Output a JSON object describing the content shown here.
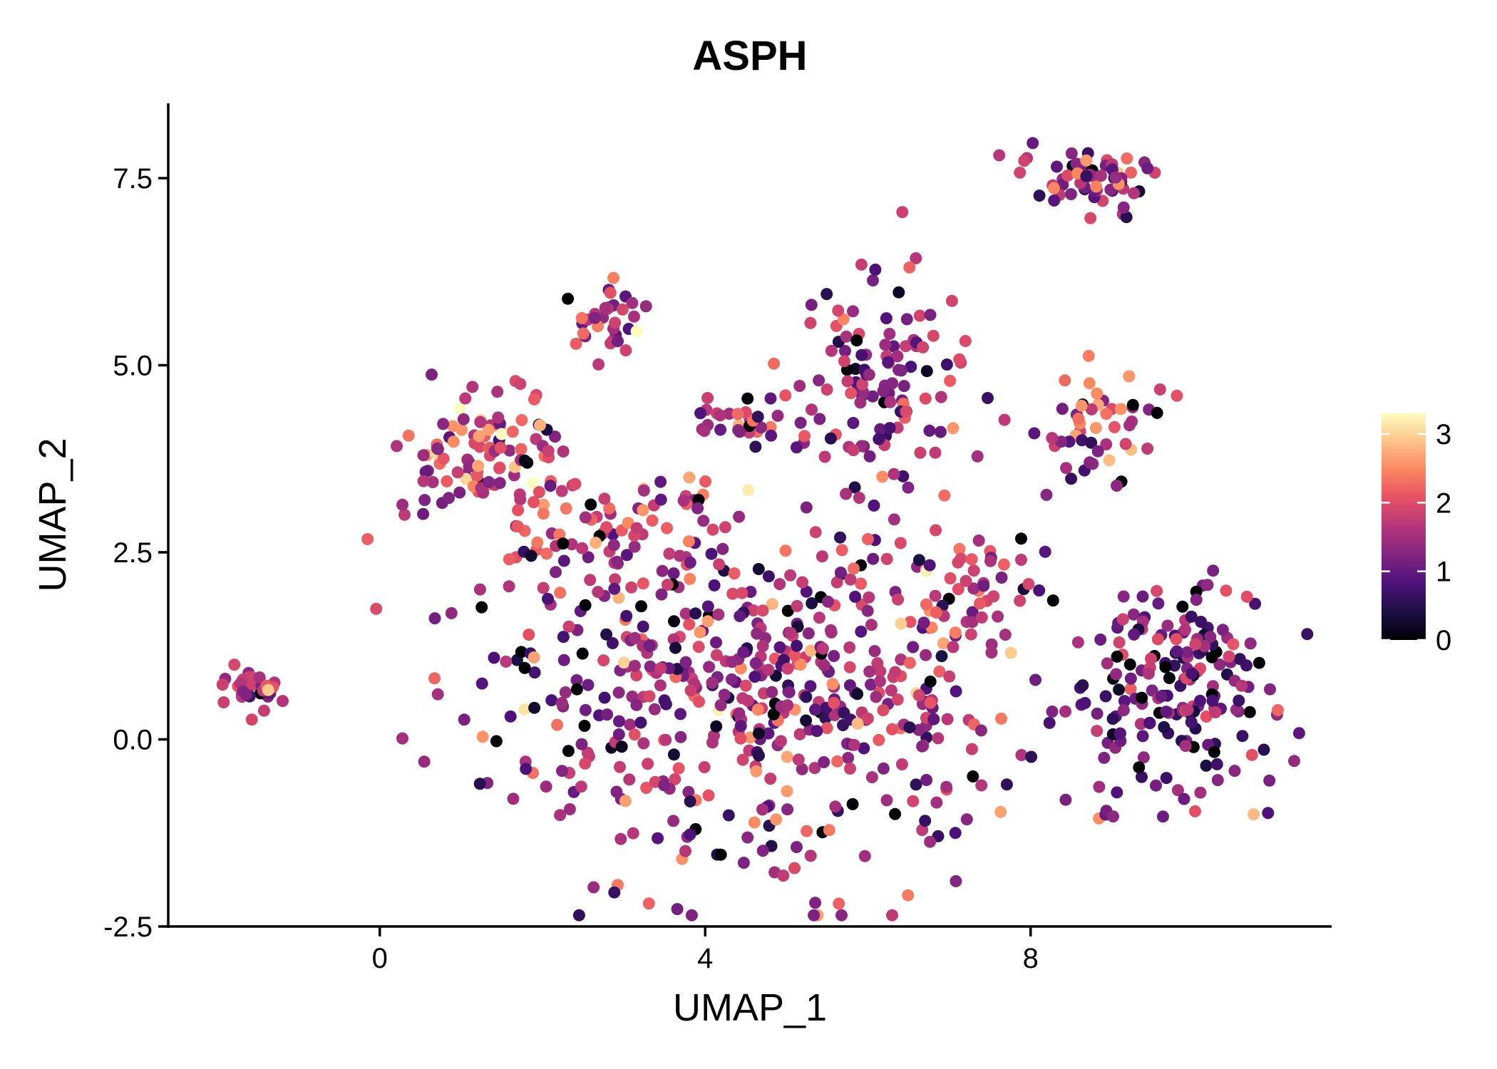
{
  "chart_data": {
    "type": "scatter",
    "title": "ASPH",
    "xlabel": "UMAP_1",
    "ylabel": "UMAP_2",
    "xlim": [
      -2.6,
      11.7
    ],
    "ylim": [
      -2.5,
      8.5
    ],
    "xticks": [
      0,
      4,
      8
    ],
    "xtick_labels": [
      "0",
      "4",
      "8"
    ],
    "yticks": [
      -2.5,
      0.0,
      2.5,
      5.0,
      7.5
    ],
    "ytick_labels": [
      "-2.5",
      "0.0",
      "2.5",
      "5.0",
      "7.5"
    ],
    "colorbar": {
      "title": "",
      "min": 0,
      "max": 3.3,
      "ticks": [
        0,
        1,
        2,
        3
      ],
      "tick_labels": [
        "0",
        "1",
        "2",
        "3"
      ],
      "palette": [
        "#000004",
        "#1c1044",
        "#4f127b",
        "#812581",
        "#b5367a",
        "#e55064",
        "#fb8761",
        "#fec287",
        "#fcfdbf"
      ]
    },
    "grid": false,
    "legend_position": "right",
    "clusters": [
      {
        "name": "left-small",
        "cx": -1.55,
        "cy": 0.65,
        "sx": 0.22,
        "sy": 0.14,
        "n": 30,
        "mean_expr": 1.7,
        "sd_expr": 0.4,
        "low_frac": 0.05
      },
      {
        "name": "top-right",
        "cx": 8.75,
        "cy": 7.5,
        "sx": 0.45,
        "sy": 0.22,
        "n": 65,
        "mean_expr": 1.4,
        "sd_expr": 0.55,
        "low_frac": 0.05
      },
      {
        "name": "upper-left-arc",
        "cx": 1.2,
        "cy": 3.8,
        "sx": 0.55,
        "sy": 0.45,
        "n": 110,
        "mean_expr": 1.9,
        "sd_expr": 0.6,
        "low_frac": 0.02
      },
      {
        "name": "upper-mid-left",
        "cx": 2.8,
        "cy": 5.6,
        "sx": 0.25,
        "sy": 0.25,
        "n": 35,
        "mean_expr": 1.7,
        "sd_expr": 0.5,
        "low_frac": 0.03
      },
      {
        "name": "upper-mid",
        "cx": 4.4,
        "cy": 4.25,
        "sx": 0.35,
        "sy": 0.15,
        "n": 28,
        "mean_expr": 1.5,
        "sd_expr": 0.6,
        "low_frac": 0.1
      },
      {
        "name": "upper-center",
        "cx": 6.1,
        "cy": 4.6,
        "sx": 0.5,
        "sy": 0.75,
        "n": 120,
        "mean_expr": 1.4,
        "sd_expr": 0.6,
        "low_frac": 0.02
      },
      {
        "name": "right-mid",
        "cx": 8.8,
        "cy": 4.2,
        "sx": 0.35,
        "sy": 0.35,
        "n": 50,
        "mean_expr": 1.6,
        "sd_expr": 0.6,
        "low_frac": 0.03
      },
      {
        "name": "main-body",
        "cx": 4.6,
        "cy": 0.6,
        "sx": 1.75,
        "sy": 1.2,
        "n": 560,
        "mean_expr": 1.5,
        "sd_expr": 0.6,
        "low_frac": 0.035
      },
      {
        "name": "mid-bridge",
        "cx": 3.0,
        "cy": 2.8,
        "sx": 0.8,
        "sy": 0.45,
        "n": 60,
        "mean_expr": 1.7,
        "sd_expr": 0.55,
        "low_frac": 0.02
      },
      {
        "name": "right-cluster",
        "cx": 9.8,
        "cy": 0.5,
        "sx": 0.65,
        "sy": 0.85,
        "n": 190,
        "mean_expr": 1.1,
        "sd_expr": 0.55,
        "low_frac": 0.05
      },
      {
        "name": "right-bridge",
        "cx": 7.3,
        "cy": 1.9,
        "sx": 0.45,
        "sy": 0.45,
        "n": 35,
        "mean_expr": 1.9,
        "sd_expr": 0.5,
        "low_frac": 0.0
      }
    ],
    "n_points_approx": 1283
  }
}
